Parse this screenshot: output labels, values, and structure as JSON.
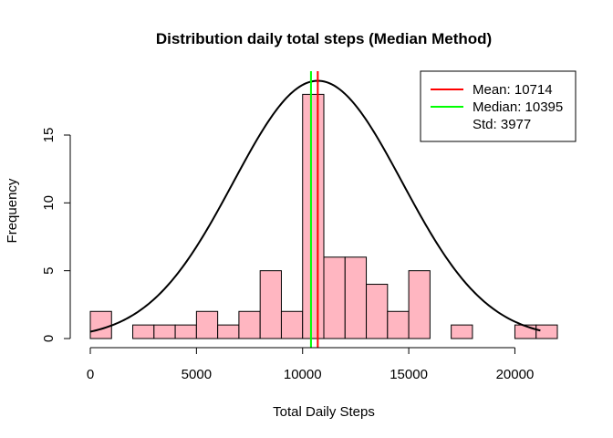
{
  "chart_data": {
    "type": "bar",
    "title": "Distribution daily total steps (Median Method)",
    "xlabel": "Total Daily Steps",
    "ylabel": "Frequency",
    "xlim": [
      0,
      22000
    ],
    "ylim": [
      0,
      19.5
    ],
    "x_ticks": [
      0,
      5000,
      10000,
      15000,
      20000
    ],
    "y_ticks": [
      0,
      5,
      10,
      15
    ],
    "bin_width": 1000,
    "bins": [
      {
        "start": 0,
        "end": 1000,
        "count": 2
      },
      {
        "start": 1000,
        "end": 2000,
        "count": 0
      },
      {
        "start": 2000,
        "end": 3000,
        "count": 1
      },
      {
        "start": 3000,
        "end": 4000,
        "count": 1
      },
      {
        "start": 4000,
        "end": 5000,
        "count": 1
      },
      {
        "start": 5000,
        "end": 6000,
        "count": 2
      },
      {
        "start": 6000,
        "end": 7000,
        "count": 1
      },
      {
        "start": 7000,
        "end": 8000,
        "count": 2
      },
      {
        "start": 8000,
        "end": 9000,
        "count": 5
      },
      {
        "start": 9000,
        "end": 10000,
        "count": 2
      },
      {
        "start": 10000,
        "end": 11000,
        "count": 18
      },
      {
        "start": 11000,
        "end": 12000,
        "count": 6
      },
      {
        "start": 12000,
        "end": 13000,
        "count": 6
      },
      {
        "start": 13000,
        "end": 14000,
        "count": 4
      },
      {
        "start": 14000,
        "end": 15000,
        "count": 2
      },
      {
        "start": 15000,
        "end": 16000,
        "count": 5
      },
      {
        "start": 16000,
        "end": 17000,
        "count": 0
      },
      {
        "start": 17000,
        "end": 18000,
        "count": 1
      },
      {
        "start": 18000,
        "end": 19000,
        "count": 0
      },
      {
        "start": 19000,
        "end": 20000,
        "count": 0
      },
      {
        "start": 20000,
        "end": 21000,
        "count": 1
      },
      {
        "start": 21000,
        "end": 22000,
        "count": 1
      }
    ],
    "bar_color": "#FFB6C1",
    "mean": 10714,
    "median": 10395,
    "std": 3977,
    "mean_color": "#FF0000",
    "median_color": "#00FF00",
    "curve": {
      "type": "normal",
      "x_range": [
        0,
        21200
      ],
      "peak": 19,
      "color": "#000000"
    },
    "legend": {
      "placement": "top-right",
      "entries": [
        {
          "label": "Mean: 10714",
          "color": "#FF0000",
          "line": true
        },
        {
          "label": "Median: 10395",
          "color": "#00FF00",
          "line": true
        },
        {
          "label": "Std: 3977",
          "color": "",
          "line": false
        }
      ]
    }
  }
}
